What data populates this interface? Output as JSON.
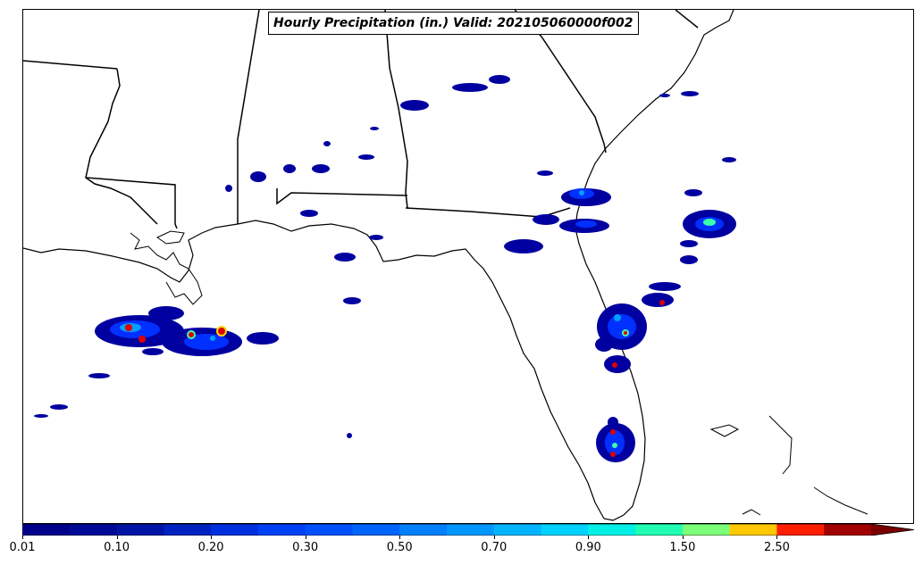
{
  "title": "Hourly Precipitation (in.) Valid: 202105060000f002",
  "colorbar": {
    "tick_labels": [
      "0.01",
      "0.10",
      "0.20",
      "0.30",
      "0.50",
      "0.70",
      "0.90",
      "1.50",
      "2.50"
    ],
    "colors": [
      "#00008b",
      "#000a96",
      "#0014a5",
      "#0022c0",
      "#0030dd",
      "#0040f5",
      "#0050ff",
      "#0064ff",
      "#0080ff",
      "#0096ff",
      "#00b4ff",
      "#00d2ff",
      "#00f0e6",
      "#20ffb4",
      "#7cff78",
      "#ffc800",
      "#ff1e00",
      "#a00000"
    ],
    "extend_color": "#7a0000"
  },
  "map": {
    "region": "Southeastern United States and Gulf of Mexico",
    "precip_colors": {
      "light": "#0000a0",
      "medium": "#0030ff",
      "moderate": "#00a0ff",
      "heavy": "#3cffaa",
      "intense": "#ffdc00",
      "extreme": "#e00000"
    }
  }
}
